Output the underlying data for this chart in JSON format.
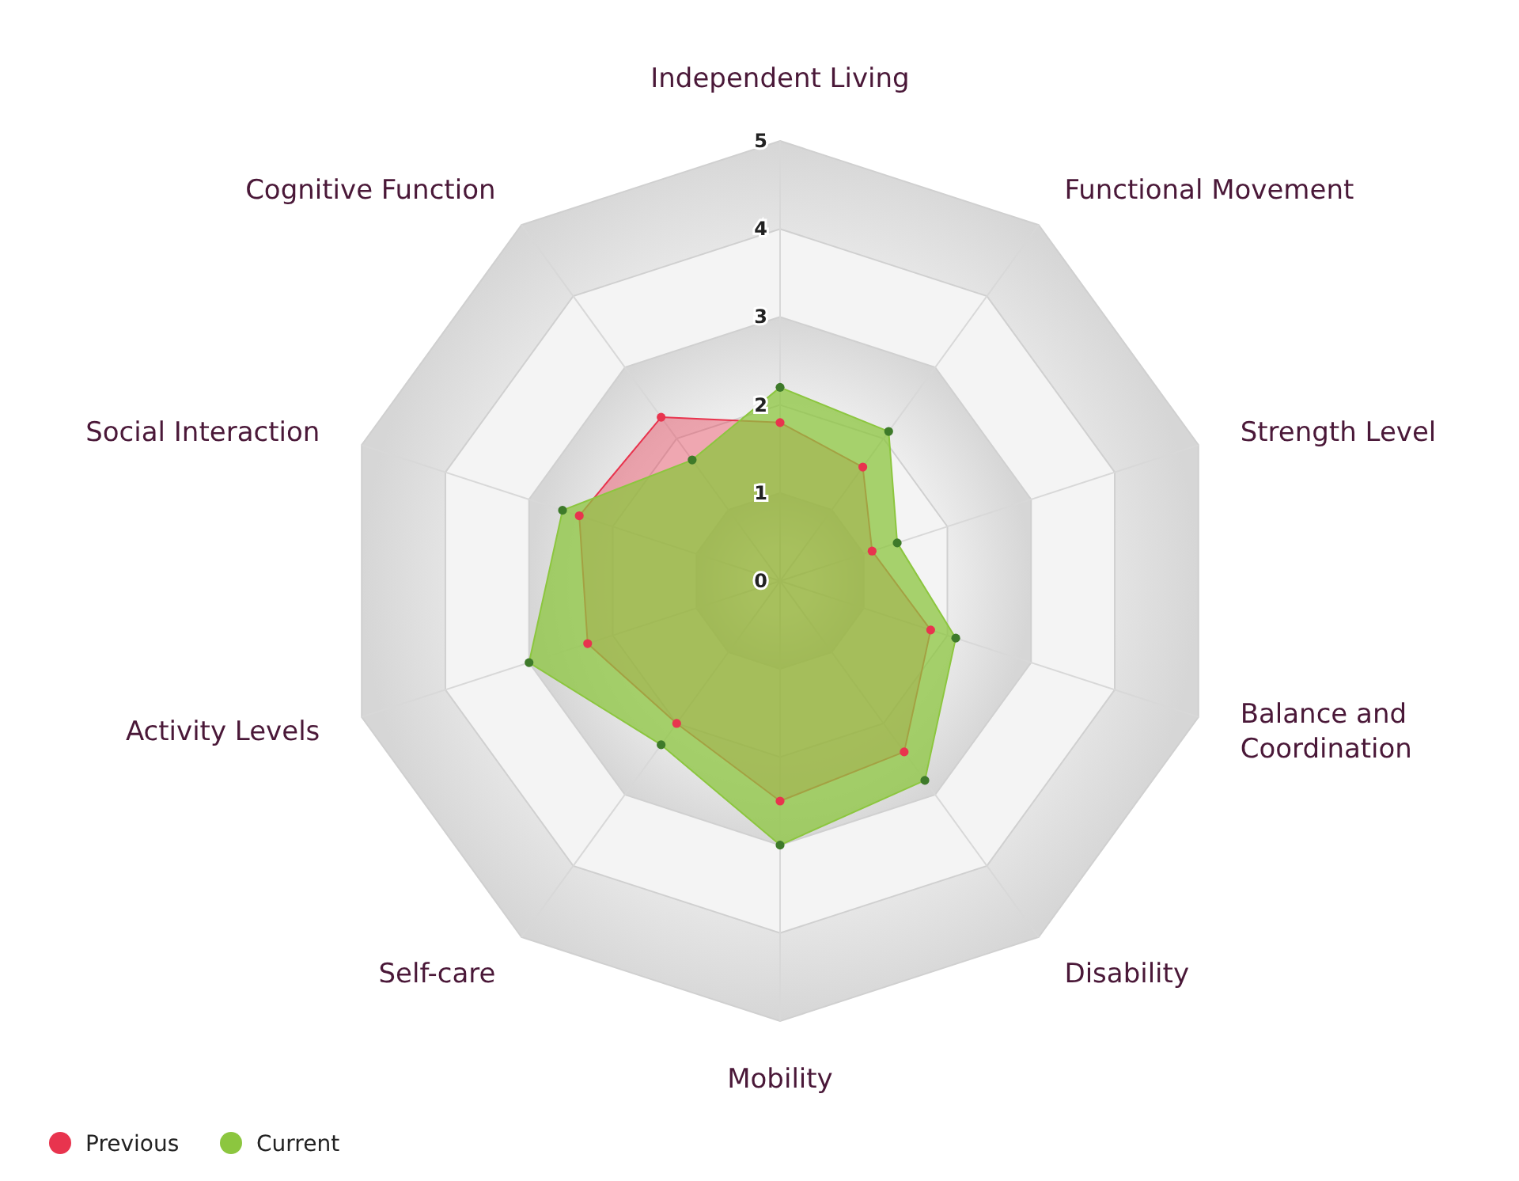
{
  "chart_data": {
    "type": "radar",
    "categories": [
      "Independent Living",
      "Functional Movement",
      "Strength Level",
      "Balance and Coordination",
      "Disability",
      "Mobility",
      "Self-care",
      "Activity Levels",
      "Social Interaction",
      "Cognitive Function"
    ],
    "series": [
      {
        "name": "Previous",
        "color": "#e8344e",
        "values": [
          1.8,
          1.6,
          1.1,
          1.8,
          2.4,
          2.5,
          2.0,
          2.3,
          2.4,
          2.3
        ]
      },
      {
        "name": "Current",
        "color": "#8cc63f",
        "values": [
          2.2,
          2.1,
          1.4,
          2.1,
          2.8,
          3.0,
          2.3,
          3.0,
          2.6,
          1.7
        ]
      }
    ],
    "ylim": [
      0,
      5
    ],
    "yticks": [
      0,
      1,
      2,
      3,
      4,
      5
    ],
    "grid": true,
    "legend": "bottom left",
    "marker": "circle"
  }
}
